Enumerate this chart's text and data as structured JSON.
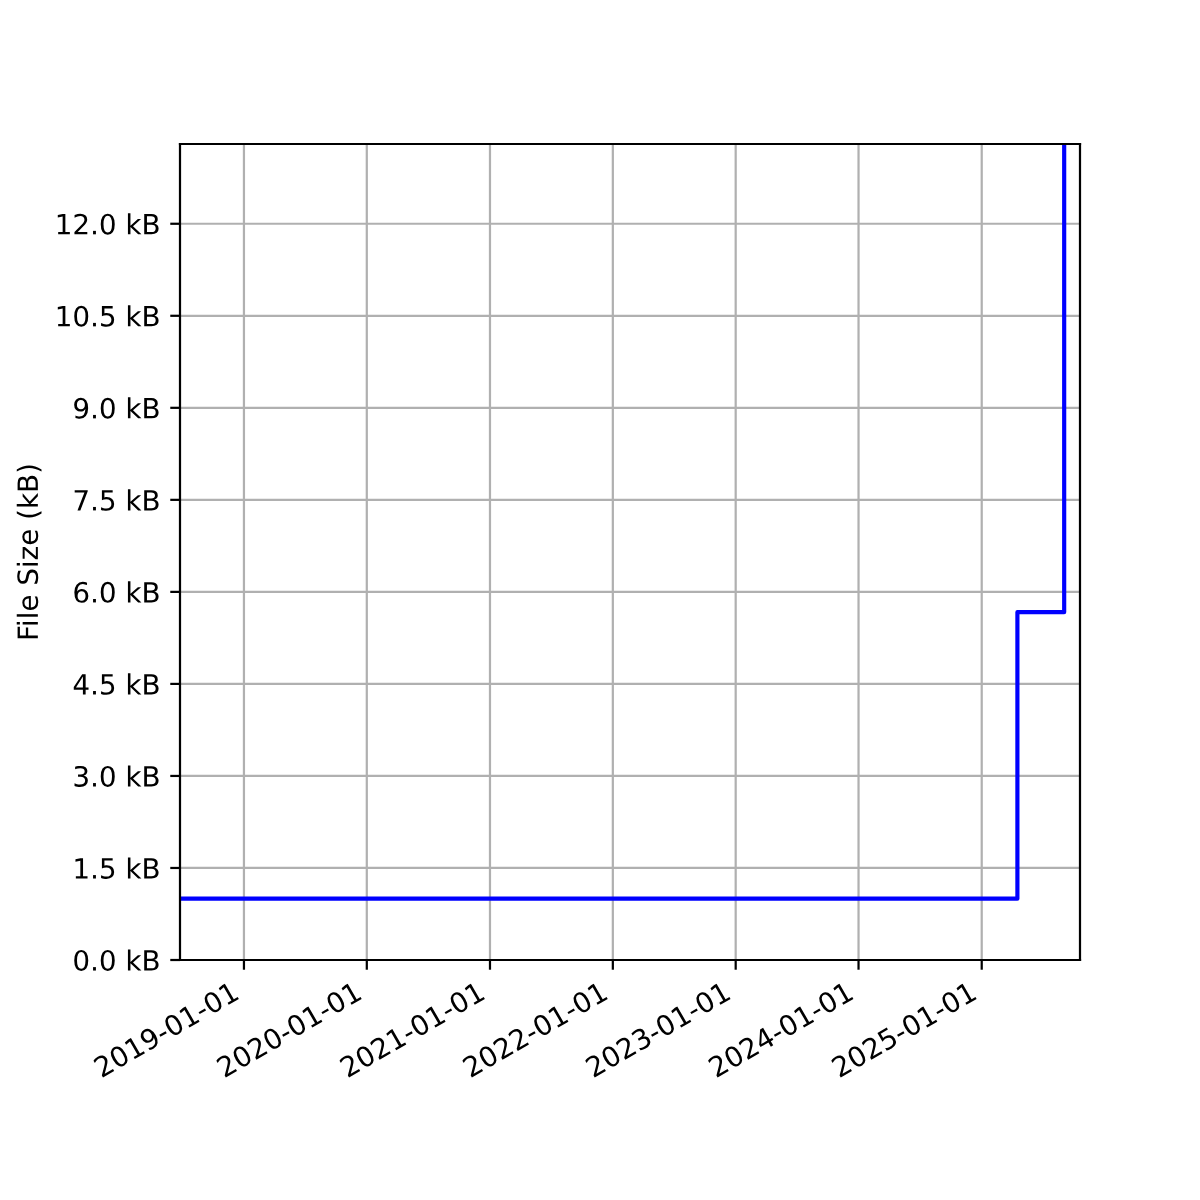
{
  "chart_data": {
    "type": "step",
    "ylabel": "File Size (kB)",
    "x": [
      "2018-06-25",
      "2025-04-17",
      "2025-09-03"
    ],
    "series": [
      {
        "color": "#0000ff",
        "values": [
          1.0,
          5.67,
          13.3
        ]
      }
    ],
    "xlim": [
      "2018-06-25",
      "2025-10-20"
    ],
    "xticks": [
      {
        "value": "2019-01-01",
        "label": "2019-01-01"
      },
      {
        "value": "2020-01-01",
        "label": "2020-01-01"
      },
      {
        "value": "2021-01-01",
        "label": "2021-01-01"
      },
      {
        "value": "2022-01-01",
        "label": "2022-01-01"
      },
      {
        "value": "2023-01-01",
        "label": "2023-01-01"
      },
      {
        "value": "2024-01-01",
        "label": "2024-01-01"
      },
      {
        "value": "2025-01-01",
        "label": "2025-01-01"
      }
    ],
    "ylim": [
      0,
      13.3
    ],
    "yticks": [
      {
        "value": 0,
        "label": "0.0 kB"
      },
      {
        "value": 1.5,
        "label": "1.5 kB"
      },
      {
        "value": 3,
        "label": "3.0 kB"
      },
      {
        "value": 4.5,
        "label": "4.5 kB"
      },
      {
        "value": 6,
        "label": "6.0 kB"
      },
      {
        "value": 7.5,
        "label": "7.5 kB"
      },
      {
        "value": 9,
        "label": "9.0 kB"
      },
      {
        "value": 10.5,
        "label": "10.5 kB"
      },
      {
        "value": 12,
        "label": "12.0 kB"
      }
    ],
    "grid": true,
    "marker": "none",
    "line_style": "solid"
  }
}
